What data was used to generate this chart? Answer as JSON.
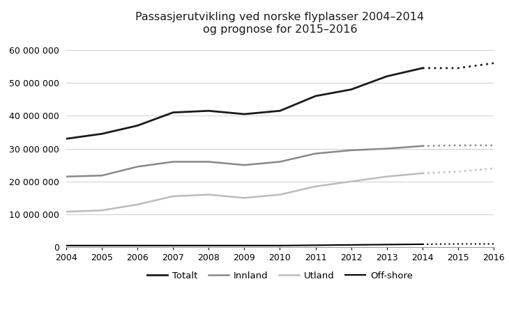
{
  "title": "Passasjerutvikling ved norske flyplasser 2004–2014\nog prognose for 2015–2016",
  "years_actual": [
    2004,
    2005,
    2006,
    2007,
    2008,
    2009,
    2010,
    2011,
    2012,
    2013,
    2014
  ],
  "years_forecast": [
    2014,
    2015,
    2016
  ],
  "totalt_actual": [
    33000000,
    34500000,
    37000000,
    41000000,
    41500000,
    40500000,
    41500000,
    46000000,
    48000000,
    52000000,
    54500000
  ],
  "totalt_forecast": [
    54500000,
    54500000,
    56000000
  ],
  "innland_actual": [
    21500000,
    21800000,
    24500000,
    26000000,
    26000000,
    25000000,
    26000000,
    28500000,
    29500000,
    30000000,
    30800000
  ],
  "innland_forecast": [
    30800000,
    31000000,
    31000000
  ],
  "utland_actual": [
    10800000,
    11200000,
    13000000,
    15500000,
    16000000,
    15000000,
    16000000,
    18500000,
    20000000,
    21500000,
    22500000
  ],
  "utland_forecast": [
    22500000,
    23000000,
    24000000
  ],
  "offshore_actual": [
    500000,
    500000,
    500000,
    500000,
    500000,
    500000,
    500000,
    600000,
    700000,
    800000,
    900000
  ],
  "offshore_forecast": [
    900000,
    1000000,
    1000000
  ],
  "color_totalt": "#1a1a1a",
  "color_innland": "#888888",
  "color_utland": "#bbbbbb",
  "color_offshore": "#000000",
  "background_color": "#ffffff",
  "ylim": [
    0,
    63000000
  ],
  "yticks": [
    0,
    10000000,
    20000000,
    30000000,
    40000000,
    50000000,
    60000000
  ],
  "legend_labels": [
    "Totalt",
    "Innland",
    "Utland",
    "Off-shore"
  ],
  "xlabel": "",
  "ylabel": "",
  "figsize": [
    7.3,
    4.44
  ],
  "dpi": 100
}
